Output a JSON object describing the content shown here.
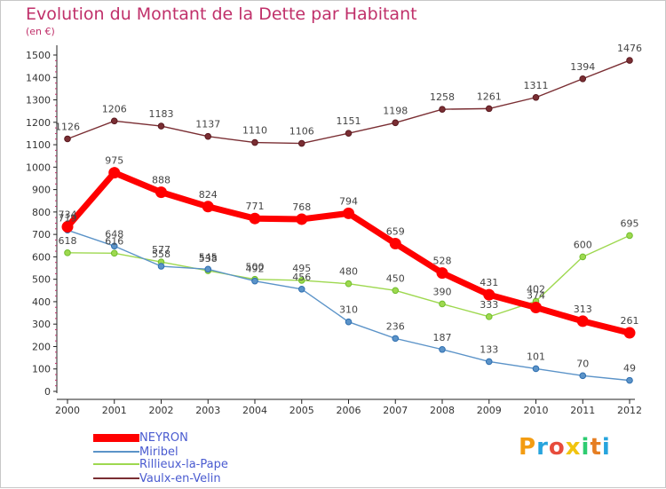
{
  "title": "Evolution du Montant de la Dette par Habitant",
  "subtitle": "(en €)",
  "logo": {
    "letters": [
      "P",
      "r",
      "o",
      "x",
      "i",
      "t",
      "i"
    ],
    "colors": [
      "#f39c12",
      "#27a4dd",
      "#e74c3c",
      "#f1c40f",
      "#2ecc71",
      "#e67e22",
      "#27a4dd"
    ]
  },
  "chart_data": {
    "type": "line",
    "title": "Evolution du Montant de la Dette par Habitant",
    "ylabel": "(en €)",
    "xlabel": "",
    "ylim": [
      0,
      1500
    ],
    "yticks": [
      0,
      100,
      200,
      300,
      400,
      500,
      600,
      700,
      800,
      900,
      1000,
      1100,
      1200,
      1300,
      1400,
      1500
    ],
    "x": [
      "2000",
      "2001",
      "2002",
      "2003",
      "2004",
      "2005",
      "2006",
      "2007",
      "2008",
      "2009",
      "2010",
      "2011",
      "2012"
    ],
    "grid": false,
    "legend_position": "bottom-left",
    "series": [
      {
        "name": "Vaulx-en-Velin",
        "color": "#7a2e33",
        "values": [
          1126,
          1206,
          1183,
          1137,
          1110,
          1106,
          1151,
          1198,
          1258,
          1261,
          1311,
          1394,
          1476
        ],
        "labels": [
          "1126",
          "1206",
          "1183",
          "1137",
          "1110",
          "1106",
          "1151",
          "1198",
          "1258",
          "1261",
          "1311",
          "1394",
          "1476"
        ]
      },
      {
        "name": "Rillieux-la-Pape",
        "color": "#9ed84f",
        "values": [
          618,
          616,
          577,
          538,
          500,
          495,
          480,
          450,
          390,
          333,
          402,
          600,
          695
        ],
        "labels": [
          "618",
          "616",
          "577",
          "538",
          "500",
          "495",
          "480",
          "450",
          "390",
          "333",
          "402",
          "600",
          "695"
        ]
      },
      {
        "name": "Miribel",
        "color": "#5b93c8",
        "values": [
          719,
          648,
          558,
          545,
          492,
          456,
          310,
          236,
          187,
          133,
          101,
          70,
          49
        ],
        "labels": [
          "719",
          "648",
          "558",
          "545",
          "492",
          "456",
          "310",
          "236",
          "187",
          "133",
          "101",
          "70",
          "49"
        ]
      },
      {
        "name": "NEYRON",
        "color": "#ff0000",
        "values": [
          734,
          975,
          888,
          824,
          771,
          768,
          794,
          659,
          528,
          431,
          374,
          313,
          261
        ],
        "labels": [
          "734",
          "975",
          "888",
          "824",
          "771",
          "768",
          "794",
          "659",
          "528",
          "431",
          "374",
          "313",
          "261"
        ]
      }
    ]
  },
  "legend": [
    {
      "name": "NEYRON",
      "color": "#ff0000"
    },
    {
      "name": "Miribel",
      "color": "#5b93c8"
    },
    {
      "name": "Rillieux-la-Pape",
      "color": "#9ed84f"
    },
    {
      "name": "Vaulx-en-Velin",
      "color": "#7a2e33"
    }
  ]
}
